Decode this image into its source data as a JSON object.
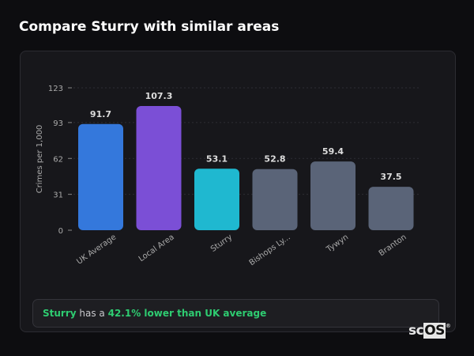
{
  "title": "Compare Sturry with similar areas",
  "chart_data": {
    "type": "bar",
    "categories": [
      "UK Average",
      "Local Area",
      "Sturry",
      "Bishops Ly...",
      "Tywyn",
      "Branton"
    ],
    "values": [
      91.7,
      107.3,
      53.1,
      52.8,
      59.4,
      37.5
    ],
    "colors": [
      "#3478dc",
      "#7b4fd6",
      "#1fb8d0",
      "#5a6478",
      "#5a6478",
      "#5a6478"
    ],
    "ylabel": "Crimes per 1,000",
    "yticks": [
      0,
      31,
      62,
      93,
      123
    ],
    "ylim": [
      0,
      123
    ],
    "grid": true
  },
  "footer": {
    "area": "Sturry",
    "middle": " has a ",
    "highlight": "42.1% lower than UK average"
  },
  "logo": "scOS"
}
